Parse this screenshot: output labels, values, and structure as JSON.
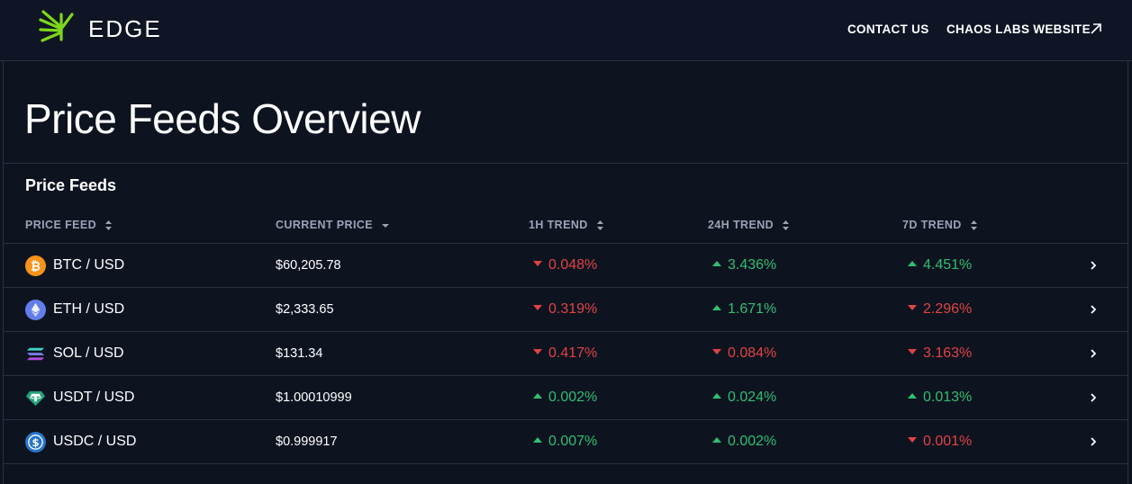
{
  "header": {
    "brand": "EDGE",
    "nav": {
      "contact": "CONTACT US",
      "chaos": "CHAOS LABS WEBSITE"
    },
    "accent": "#7cd81a"
  },
  "page": {
    "title": "Price Feeds Overview"
  },
  "section": {
    "title": "Price Feeds"
  },
  "table": {
    "columns": {
      "feed": "PRICE FEED",
      "price": "CURRENT PRICE",
      "t1h": "1H TREND",
      "t24h": "24H TREND",
      "t7d": "7D TREND"
    },
    "rows": [
      {
        "icon": "btc-icon",
        "pair": "BTC / USD",
        "price": "$60,205.78",
        "t1h": "0.048%",
        "t1h_dir": "down",
        "t24h": "3.436%",
        "t24h_dir": "up",
        "t7d": "4.451%",
        "t7d_dir": "up"
      },
      {
        "icon": "eth-icon",
        "pair": "ETH / USD",
        "price": "$2,333.65",
        "t1h": "0.319%",
        "t1h_dir": "down",
        "t24h": "1.671%",
        "t24h_dir": "up",
        "t7d": "2.296%",
        "t7d_dir": "down"
      },
      {
        "icon": "sol-icon",
        "pair": "SOL / USD",
        "price": "$131.34",
        "t1h": "0.417%",
        "t1h_dir": "down",
        "t24h": "0.084%",
        "t24h_dir": "down",
        "t7d": "3.163%",
        "t7d_dir": "down"
      },
      {
        "icon": "usdt-icon",
        "pair": "USDT / USD",
        "price": "$1.00010999",
        "t1h": "0.002%",
        "t1h_dir": "up",
        "t24h": "0.024%",
        "t24h_dir": "up",
        "t7d": "0.013%",
        "t7d_dir": "up"
      },
      {
        "icon": "usdc-icon",
        "pair": "USDC / USD",
        "price": "$0.999917",
        "t1h": "0.007%",
        "t1h_dir": "up",
        "t24h": "0.002%",
        "t24h_dir": "up",
        "t7d": "0.001%",
        "t7d_dir": "down"
      }
    ]
  },
  "colors": {
    "up": "#2fbf71",
    "down": "#e04343",
    "background": "#0e1320"
  }
}
